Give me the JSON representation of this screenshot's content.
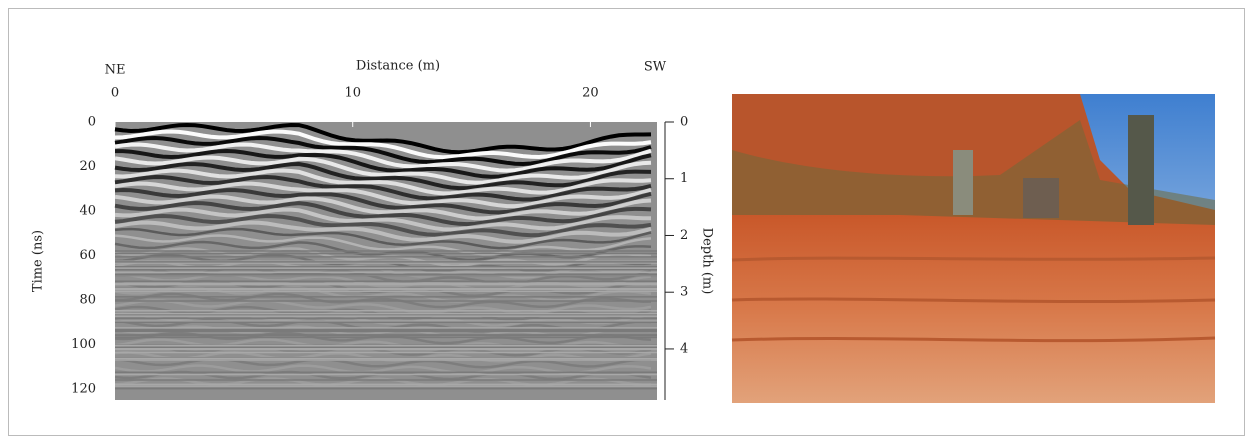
{
  "chart_data": {
    "type": "radargram",
    "x_label": "Distance (m)",
    "left_end_label": "NE",
    "right_end_label": "SW",
    "y_label": "Time (ns)",
    "y2_label": "Depth (m)",
    "xlim": [
      0,
      22.8
    ],
    "xticks": [
      0,
      10,
      20
    ],
    "ylim": [
      0,
      125
    ],
    "yticks": [
      0,
      20,
      40,
      60,
      80,
      100,
      120
    ],
    "y2lim": [
      0,
      4.9
    ],
    "y2ticks": [
      0,
      1,
      2,
      3,
      4
    ]
  }
}
